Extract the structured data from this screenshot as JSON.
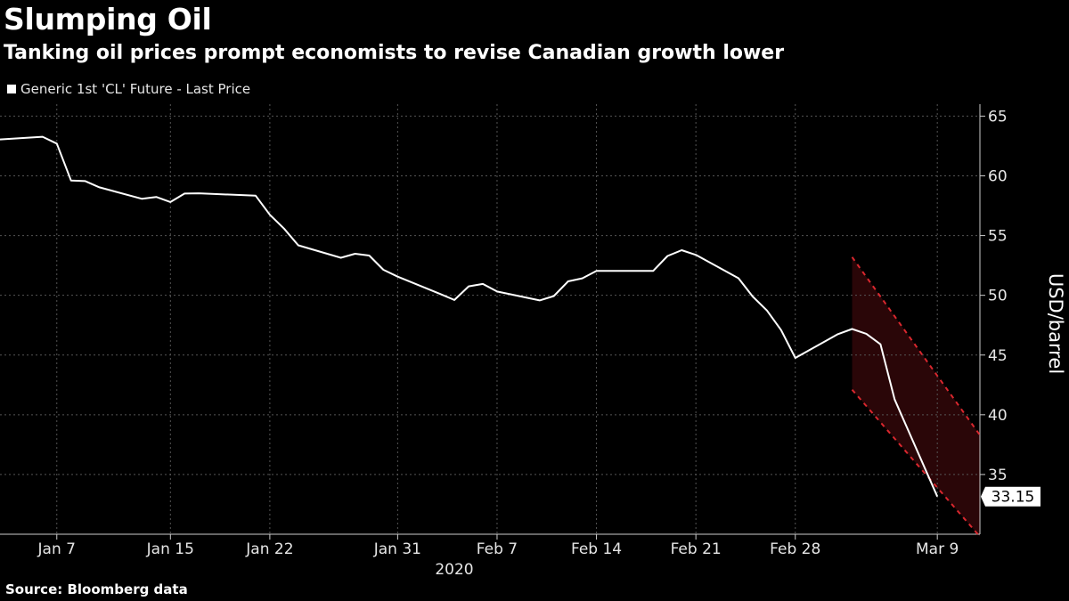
{
  "title": "Slumping Oil",
  "subtitle": "Tanking oil prices prompt economists to revise Canadian growth lower",
  "source": "Source: Bloomberg data",
  "colors": {
    "background": "#000000",
    "line": "#ffffff",
    "grid": "#555555",
    "highlight_band": "#2a0608",
    "highlight_dash": "#d9272e"
  },
  "chart_data": {
    "type": "line",
    "series": [
      {
        "name": "Generic 1st 'CL' Future - Last Price",
        "x": [
          "2020-01-03",
          "2020-01-06",
          "2020-01-07",
          "2020-01-08",
          "2020-01-09",
          "2020-01-10",
          "2020-01-13",
          "2020-01-14",
          "2020-01-15",
          "2020-01-16",
          "2020-01-17",
          "2020-01-21",
          "2020-01-22",
          "2020-01-23",
          "2020-01-24",
          "2020-01-27",
          "2020-01-28",
          "2020-01-29",
          "2020-01-30",
          "2020-01-31",
          "2020-02-03",
          "2020-02-04",
          "2020-02-05",
          "2020-02-06",
          "2020-02-07",
          "2020-02-10",
          "2020-02-11",
          "2020-02-12",
          "2020-02-13",
          "2020-02-14",
          "2020-02-18",
          "2020-02-19",
          "2020-02-20",
          "2020-02-21",
          "2020-02-24",
          "2020-02-25",
          "2020-02-26",
          "2020-02-27",
          "2020-02-28",
          "2020-03-02",
          "2020-03-03",
          "2020-03-04",
          "2020-03-05",
          "2020-03-06",
          "2020-03-09"
        ],
        "values": [
          63.05,
          63.27,
          62.7,
          59.61,
          59.56,
          59.04,
          58.08,
          58.23,
          57.81,
          58.52,
          58.54,
          58.34,
          56.74,
          55.59,
          54.19,
          53.14,
          53.48,
          53.33,
          52.14,
          51.56,
          50.11,
          49.61,
          50.75,
          50.95,
          50.32,
          49.57,
          49.94,
          51.17,
          51.42,
          52.05,
          52.05,
          53.29,
          53.78,
          53.38,
          51.43,
          49.9,
          48.73,
          47.09,
          44.76,
          46.75,
          47.18,
          46.78,
          45.9,
          41.28,
          33.15
        ]
      }
    ],
    "x_ticks": [
      "Jan 7",
      "Jan 15",
      "Jan 22",
      "Jan 31",
      "Feb 7",
      "Feb 14",
      "Feb 21",
      "Feb 28",
      "Mar 9"
    ],
    "x_year_label": "2020",
    "y_ticks": [
      35,
      40,
      45,
      50,
      55,
      60,
      65
    ],
    "ylim": [
      30,
      66
    ],
    "ylabel": "USD/barrel",
    "last_value_label": "33.15",
    "grid": true,
    "highlight": {
      "style": "red dashed downward channel",
      "start": "2020-03-03",
      "top_start": 53.2,
      "bottom_start": 42.1,
      "top_end": 38.3,
      "bottom_end": 29.8
    }
  }
}
